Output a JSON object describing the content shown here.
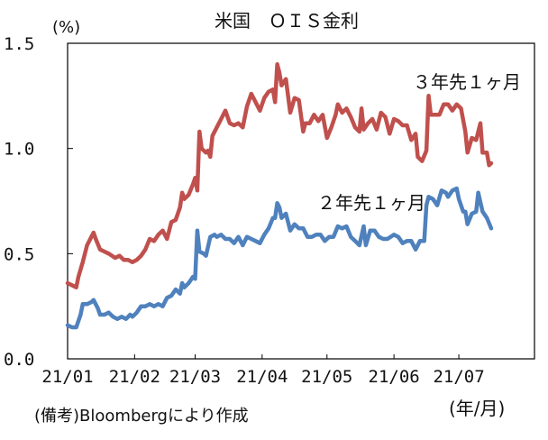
{
  "chart_data": {
    "type": "line",
    "title": "米国　ＯＩＳ金利",
    "unit_label": "(%)",
    "x_unit_label": "(年/月)",
    "source_note": "(備考)Bloombergにより作成",
    "xlabel": "",
    "ylabel": "",
    "ylim": [
      0.0,
      1.5
    ],
    "y_ticks": [
      "0.0",
      "0.5",
      "1.0",
      "1.5"
    ],
    "x_range": [
      "2021-01-01",
      "2021-08-05"
    ],
    "x_ticks": [
      {
        "date": "2021-01-01",
        "label": "21/01"
      },
      {
        "date": "2021-02-01",
        "label": "21/02"
      },
      {
        "date": "2021-03-01",
        "label": "21/03"
      },
      {
        "date": "2021-04-01",
        "label": "21/04"
      },
      {
        "date": "2021-05-01",
        "label": "21/05"
      },
      {
        "date": "2021-06-01",
        "label": "21/06"
      },
      {
        "date": "2021-07-01",
        "label": "21/07"
      }
    ],
    "grid": false,
    "legend": "inline labels",
    "series": [
      {
        "name": "３年先１ヶ月",
        "color": "#c0504d",
        "points": [
          [
            "2021-01-01",
            0.36
          ],
          [
            "2021-01-03",
            0.35
          ],
          [
            "2021-01-05",
            0.34
          ],
          [
            "2021-01-06",
            0.39
          ],
          [
            "2021-01-08",
            0.46
          ],
          [
            "2021-01-10",
            0.54
          ],
          [
            "2021-01-12",
            0.58
          ],
          [
            "2021-01-13",
            0.6
          ],
          [
            "2021-01-14",
            0.57
          ],
          [
            "2021-01-16",
            0.52
          ],
          [
            "2021-01-18",
            0.51
          ],
          [
            "2021-01-20",
            0.5
          ],
          [
            "2021-01-23",
            0.48
          ],
          [
            "2021-01-25",
            0.49
          ],
          [
            "2021-01-27",
            0.47
          ],
          [
            "2021-01-29",
            0.47
          ],
          [
            "2021-01-31",
            0.46
          ],
          [
            "2021-02-02",
            0.47
          ],
          [
            "2021-02-04",
            0.49
          ],
          [
            "2021-02-06",
            0.52
          ],
          [
            "2021-02-08",
            0.57
          ],
          [
            "2021-02-10",
            0.56
          ],
          [
            "2021-02-12",
            0.59
          ],
          [
            "2021-02-14",
            0.61
          ],
          [
            "2021-02-16",
            0.57
          ],
          [
            "2021-02-18",
            0.65
          ],
          [
            "2021-02-20",
            0.66
          ],
          [
            "2021-02-22",
            0.72
          ],
          [
            "2021-02-23",
            0.79
          ],
          [
            "2021-02-24",
            0.76
          ],
          [
            "2021-02-26",
            0.78
          ],
          [
            "2021-02-28",
            0.83
          ],
          [
            "2021-03-01",
            0.86
          ],
          [
            "2021-03-02",
            0.8
          ],
          [
            "2021-03-03",
            1.08
          ],
          [
            "2021-03-04",
            1.0
          ],
          [
            "2021-03-06",
            0.98
          ],
          [
            "2021-03-07",
            0.99
          ],
          [
            "2021-03-08",
            0.96
          ],
          [
            "2021-03-09",
            1.06
          ],
          [
            "2021-03-11",
            1.1
          ],
          [
            "2021-03-13",
            1.14
          ],
          [
            "2021-03-15",
            1.18
          ],
          [
            "2021-03-17",
            1.12
          ],
          [
            "2021-03-19",
            1.11
          ],
          [
            "2021-03-21",
            1.12
          ],
          [
            "2021-03-23",
            1.1
          ],
          [
            "2021-03-25",
            1.2
          ],
          [
            "2021-03-27",
            1.26
          ],
          [
            "2021-03-29",
            1.22
          ],
          [
            "2021-03-31",
            1.18
          ],
          [
            "2021-04-02",
            1.24
          ],
          [
            "2021-04-04",
            1.27
          ],
          [
            "2021-04-06",
            1.28
          ],
          [
            "2021-04-07",
            1.22
          ],
          [
            "2021-04-08",
            1.4
          ],
          [
            "2021-04-09",
            1.36
          ],
          [
            "2021-04-10",
            1.3
          ],
          [
            "2021-04-12",
            1.33
          ],
          [
            "2021-04-14",
            1.17
          ],
          [
            "2021-04-16",
            1.24
          ],
          [
            "2021-04-18",
            1.23
          ],
          [
            "2021-04-20",
            1.08
          ],
          [
            "2021-04-21",
            1.12
          ],
          [
            "2021-04-23",
            1.12
          ],
          [
            "2021-04-25",
            1.16
          ],
          [
            "2021-04-27",
            1.13
          ],
          [
            "2021-04-29",
            1.16
          ],
          [
            "2021-05-01",
            1.05
          ],
          [
            "2021-05-03",
            1.1
          ],
          [
            "2021-05-05",
            1.16
          ],
          [
            "2021-05-06",
            1.21
          ],
          [
            "2021-05-08",
            1.17
          ],
          [
            "2021-05-10",
            1.19
          ],
          [
            "2021-05-12",
            1.15
          ],
          [
            "2021-05-14",
            1.1
          ],
          [
            "2021-05-16",
            1.08
          ],
          [
            "2021-05-17",
            1.19
          ],
          [
            "2021-05-18",
            1.09
          ],
          [
            "2021-05-20",
            1.12
          ],
          [
            "2021-05-22",
            1.14
          ],
          [
            "2021-05-24",
            1.09
          ],
          [
            "2021-05-26",
            1.17
          ],
          [
            "2021-05-28",
            1.15
          ],
          [
            "2021-05-30",
            1.07
          ],
          [
            "2021-06-01",
            1.14
          ],
          [
            "2021-06-03",
            1.13
          ],
          [
            "2021-06-05",
            1.11
          ],
          [
            "2021-06-07",
            1.11
          ],
          [
            "2021-06-09",
            1.04
          ],
          [
            "2021-06-11",
            1.07
          ],
          [
            "2021-06-12",
            0.96
          ],
          [
            "2021-06-14",
            0.94
          ],
          [
            "2021-06-16",
            0.99
          ],
          [
            "2021-06-17",
            1.25
          ],
          [
            "2021-06-18",
            1.16
          ],
          [
            "2021-06-20",
            1.16
          ],
          [
            "2021-06-22",
            1.16
          ],
          [
            "2021-06-24",
            1.21
          ],
          [
            "2021-06-26",
            1.21
          ],
          [
            "2021-06-28",
            1.18
          ],
          [
            "2021-06-30",
            1.21
          ],
          [
            "2021-07-02",
            1.19
          ],
          [
            "2021-07-04",
            1.08
          ],
          [
            "2021-07-05",
            0.98
          ],
          [
            "2021-07-07",
            1.05
          ],
          [
            "2021-07-09",
            1.04
          ],
          [
            "2021-07-11",
            1.12
          ],
          [
            "2021-07-12",
            0.98
          ],
          [
            "2021-07-14",
            0.98
          ],
          [
            "2021-07-15",
            0.92
          ],
          [
            "2021-07-16",
            0.93
          ]
        ]
      },
      {
        "name": "２年先１ヶ月",
        "color": "#4f81bd",
        "points": [
          [
            "2021-01-01",
            0.16
          ],
          [
            "2021-01-03",
            0.15
          ],
          [
            "2021-01-05",
            0.15
          ],
          [
            "2021-01-07",
            0.21
          ],
          [
            "2021-01-08",
            0.26
          ],
          [
            "2021-01-10",
            0.26
          ],
          [
            "2021-01-12",
            0.27
          ],
          [
            "2021-01-13",
            0.28
          ],
          [
            "2021-01-15",
            0.24
          ],
          [
            "2021-01-16",
            0.21
          ],
          [
            "2021-01-18",
            0.21
          ],
          [
            "2021-01-20",
            0.22
          ],
          [
            "2021-01-22",
            0.2
          ],
          [
            "2021-01-24",
            0.19
          ],
          [
            "2021-01-26",
            0.2
          ],
          [
            "2021-01-28",
            0.19
          ],
          [
            "2021-01-30",
            0.21
          ],
          [
            "2021-01-31",
            0.2
          ],
          [
            "2021-02-02",
            0.22
          ],
          [
            "2021-02-04",
            0.25
          ],
          [
            "2021-02-06",
            0.25
          ],
          [
            "2021-02-08",
            0.26
          ],
          [
            "2021-02-10",
            0.25
          ],
          [
            "2021-02-12",
            0.26
          ],
          [
            "2021-02-14",
            0.25
          ],
          [
            "2021-02-16",
            0.29
          ],
          [
            "2021-02-18",
            0.3
          ],
          [
            "2021-02-20",
            0.33
          ],
          [
            "2021-02-22",
            0.31
          ],
          [
            "2021-02-23",
            0.36
          ],
          [
            "2021-02-24",
            0.34
          ],
          [
            "2021-02-26",
            0.36
          ],
          [
            "2021-02-28",
            0.39
          ],
          [
            "2021-03-01",
            0.38
          ],
          [
            "2021-03-02",
            0.61
          ],
          [
            "2021-03-03",
            0.51
          ],
          [
            "2021-03-05",
            0.5
          ],
          [
            "2021-03-06",
            0.49
          ],
          [
            "2021-03-08",
            0.58
          ],
          [
            "2021-03-10",
            0.59
          ],
          [
            "2021-03-11",
            0.58
          ],
          [
            "2021-03-13",
            0.59
          ],
          [
            "2021-03-15",
            0.57
          ],
          [
            "2021-03-17",
            0.57
          ],
          [
            "2021-03-19",
            0.55
          ],
          [
            "2021-03-21",
            0.58
          ],
          [
            "2021-03-23",
            0.54
          ],
          [
            "2021-03-25",
            0.58
          ],
          [
            "2021-03-27",
            0.57
          ],
          [
            "2021-03-29",
            0.56
          ],
          [
            "2021-03-31",
            0.55
          ],
          [
            "2021-04-02",
            0.59
          ],
          [
            "2021-04-04",
            0.62
          ],
          [
            "2021-04-06",
            0.67
          ],
          [
            "2021-04-07",
            0.67
          ],
          [
            "2021-04-08",
            0.74
          ],
          [
            "2021-04-09",
            0.72
          ],
          [
            "2021-04-10",
            0.67
          ],
          [
            "2021-04-12",
            0.69
          ],
          [
            "2021-04-14",
            0.61
          ],
          [
            "2021-04-16",
            0.64
          ],
          [
            "2021-04-18",
            0.62
          ],
          [
            "2021-04-20",
            0.62
          ],
          [
            "2021-04-22",
            0.58
          ],
          [
            "2021-04-24",
            0.58
          ],
          [
            "2021-04-26",
            0.59
          ],
          [
            "2021-04-28",
            0.59
          ],
          [
            "2021-04-30",
            0.56
          ],
          [
            "2021-05-02",
            0.58
          ],
          [
            "2021-05-04",
            0.58
          ],
          [
            "2021-05-06",
            0.63
          ],
          [
            "2021-05-08",
            0.62
          ],
          [
            "2021-05-10",
            0.63
          ],
          [
            "2021-05-12",
            0.58
          ],
          [
            "2021-05-14",
            0.56
          ],
          [
            "2021-05-16",
            0.54
          ],
          [
            "2021-05-18",
            0.63
          ],
          [
            "2021-05-19",
            0.54
          ],
          [
            "2021-05-21",
            0.61
          ],
          [
            "2021-05-23",
            0.61
          ],
          [
            "2021-05-25",
            0.58
          ],
          [
            "2021-05-27",
            0.57
          ],
          [
            "2021-05-29",
            0.57
          ],
          [
            "2021-06-01",
            0.59
          ],
          [
            "2021-06-03",
            0.58
          ],
          [
            "2021-06-05",
            0.55
          ],
          [
            "2021-06-07",
            0.56
          ],
          [
            "2021-06-09",
            0.56
          ],
          [
            "2021-06-11",
            0.52
          ],
          [
            "2021-06-13",
            0.56
          ],
          [
            "2021-06-15",
            0.56
          ],
          [
            "2021-06-16",
            0.73
          ],
          [
            "2021-06-17",
            0.77
          ],
          [
            "2021-06-19",
            0.76
          ],
          [
            "2021-06-21",
            0.73
          ],
          [
            "2021-06-23",
            0.8
          ],
          [
            "2021-06-25",
            0.79
          ],
          [
            "2021-06-26",
            0.77
          ],
          [
            "2021-06-28",
            0.8
          ],
          [
            "2021-06-30",
            0.81
          ],
          [
            "2021-07-01",
            0.76
          ],
          [
            "2021-07-03",
            0.7
          ],
          [
            "2021-07-04",
            0.7
          ],
          [
            "2021-07-05",
            0.64
          ],
          [
            "2021-07-07",
            0.69
          ],
          [
            "2021-07-09",
            0.7
          ],
          [
            "2021-07-10",
            0.79
          ],
          [
            "2021-07-12",
            0.7
          ],
          [
            "2021-07-14",
            0.67
          ],
          [
            "2021-07-16",
            0.62
          ]
        ]
      }
    ]
  }
}
